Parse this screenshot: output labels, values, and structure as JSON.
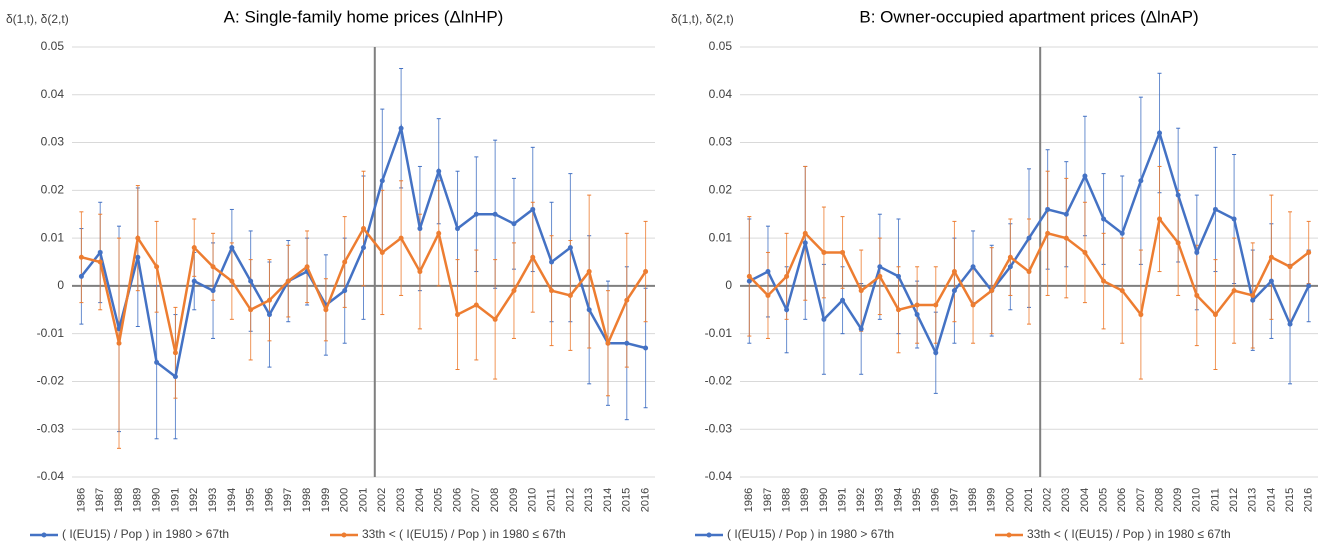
{
  "chart_data": [
    {
      "type": "line",
      "title": "A: Single-family home prices (ΔlnHP)",
      "y_label": "δ(1,t), δ(2,t)",
      "categories": [
        "1986",
        "1987",
        "1988",
        "1989",
        "1990",
        "1991",
        "1992",
        "1993",
        "1994",
        "1995",
        "1996",
        "1997",
        "1998",
        "1999",
        "2000",
        "2001",
        "2002",
        "2003",
        "2004",
        "2005",
        "2006",
        "2007",
        "2008",
        "2009",
        "2010",
        "2011",
        "2012",
        "2013",
        "2014",
        "2015",
        "2016"
      ],
      "ylim": [
        -0.04,
        0.05
      ],
      "yticks": [
        -0.04,
        -0.03,
        -0.02,
        -0.01,
        0,
        0.01,
        0.02,
        0.03,
        0.04,
        0.05
      ],
      "grid": true,
      "legend": "bottom",
      "reference_line": "2002",
      "series": [
        {
          "name": "( I(EU15) / Pop ) in 1980 > 67th",
          "color": "#4472c4",
          "values": [
            0.002,
            0.007,
            -0.009,
            0.006,
            -0.016,
            -0.019,
            0.001,
            -0.001,
            0.008,
            0.001,
            -0.006,
            0.001,
            0.003,
            -0.004,
            -0.001,
            0.008,
            0.022,
            0.033,
            0.012,
            0.024,
            0.012,
            0.015,
            0.015,
            0.013,
            0.016,
            0.005,
            0.008,
            -0.005,
            -0.012,
            -0.012,
            -0.013
          ],
          "errors": [
            0.01,
            0.0105,
            0.0215,
            0.0145,
            0.016,
            0.013,
            0.006,
            0.01,
            0.008,
            0.0105,
            0.011,
            0.0085,
            0.007,
            0.0105,
            0.011,
            0.015,
            0.015,
            0.0125,
            0.013,
            0.011,
            0.012,
            0.012,
            0.0155,
            0.0095,
            0.013,
            0.0125,
            0.0155,
            0.0155,
            0.013,
            0.016,
            0.0125
          ]
        },
        {
          "name": "33th < ( I(EU15) / Pop ) in 1980 ≤ 67th",
          "color": "#ed7d31",
          "values": [
            0.006,
            0.005,
            -0.012,
            0.01,
            0.004,
            -0.014,
            0.008,
            0.004,
            0.001,
            -0.005,
            -0.003,
            0.001,
            0.004,
            -0.005,
            0.005,
            0.012,
            0.007,
            0.01,
            0.003,
            0.011,
            -0.006,
            -0.004,
            -0.007,
            -0.001,
            0.006,
            -0.001,
            -0.002,
            0.003,
            -0.012,
            -0.003,
            0.003
          ],
          "errors": [
            0.0095,
            0.01,
            0.022,
            0.011,
            0.0095,
            0.0095,
            0.006,
            0.007,
            0.008,
            0.0105,
            0.0085,
            0.0075,
            0.0075,
            0.0065,
            0.0095,
            0.012,
            0.013,
            0.012,
            0.012,
            0.011,
            0.0115,
            0.0115,
            0.0125,
            0.01,
            0.0115,
            0.0115,
            0.0115,
            0.016,
            0.011,
            0.014,
            0.0105
          ]
        }
      ]
    },
    {
      "type": "line",
      "title": "B: Owner-occupied apartment prices (ΔlnAP)",
      "y_label": "δ(1,t), δ(2,t)",
      "categories": [
        "1986",
        "1987",
        "1988",
        "1989",
        "1990",
        "1991",
        "1992",
        "1993",
        "1994",
        "1995",
        "1996",
        "1997",
        "1998",
        "1999",
        "2000",
        "2001",
        "2002",
        "2003",
        "2004",
        "2005",
        "2006",
        "2007",
        "2008",
        "2009",
        "2010",
        "2011",
        "2012",
        "2013",
        "2014",
        "2015",
        "2016"
      ],
      "ylim": [
        -0.04,
        0.05
      ],
      "yticks": [
        -0.04,
        -0.03,
        -0.02,
        -0.01,
        0,
        0.01,
        0.02,
        0.03,
        0.04,
        0.05
      ],
      "grid": true,
      "legend": "bottom",
      "reference_line": "2002",
      "series": [
        {
          "name": "( I(EU15) / Pop ) in 1980 > 67th",
          "color": "#4472c4",
          "values": [
            0.001,
            0.003,
            -0.005,
            0.009,
            -0.007,
            -0.003,
            -0.009,
            0.004,
            0.002,
            -0.006,
            -0.014,
            -0.001,
            0.004,
            -0.001,
            0.004,
            0.01,
            0.016,
            0.015,
            0.023,
            0.014,
            0.011,
            0.022,
            0.032,
            0.019,
            0.007,
            0.016,
            0.014,
            -0.003,
            0.001,
            -0.008,
            0.0
          ],
          "errors": [
            0.013,
            0.0095,
            0.009,
            0.016,
            0.0115,
            0.007,
            0.0095,
            0.011,
            0.012,
            0.007,
            0.0085,
            0.011,
            0.0075,
            0.0095,
            0.009,
            0.0145,
            0.0125,
            0.011,
            0.0125,
            0.0095,
            0.012,
            0.0175,
            0.0125,
            0.014,
            0.012,
            0.013,
            0.0135,
            0.0105,
            0.012,
            0.0125,
            0.0075
          ]
        },
        {
          "name": "33th < ( I(EU15) / Pop ) in 1980 ≤ 67th",
          "color": "#ed7d31",
          "values": [
            0.002,
            -0.002,
            0.002,
            0.011,
            0.007,
            0.007,
            -0.001,
            0.002,
            -0.005,
            -0.004,
            -0.004,
            0.003,
            -0.004,
            -0.001,
            0.006,
            0.003,
            0.011,
            0.01,
            0.007,
            0.001,
            -0.001,
            -0.006,
            0.014,
            0.009,
            -0.002,
            -0.006,
            -0.001,
            -0.002,
            0.006,
            0.004,
            0.007
          ],
          "errors": [
            0.0125,
            0.009,
            0.009,
            0.014,
            0.0095,
            0.0075,
            0.0085,
            0.008,
            0.009,
            0.008,
            0.008,
            0.0105,
            0.008,
            0.009,
            0.008,
            0.011,
            0.013,
            0.0125,
            0.0105,
            0.01,
            0.011,
            0.0135,
            0.011,
            0.011,
            0.0105,
            0.0115,
            0.011,
            0.011,
            0.013,
            0.0115,
            0.0065
          ]
        }
      ]
    }
  ]
}
